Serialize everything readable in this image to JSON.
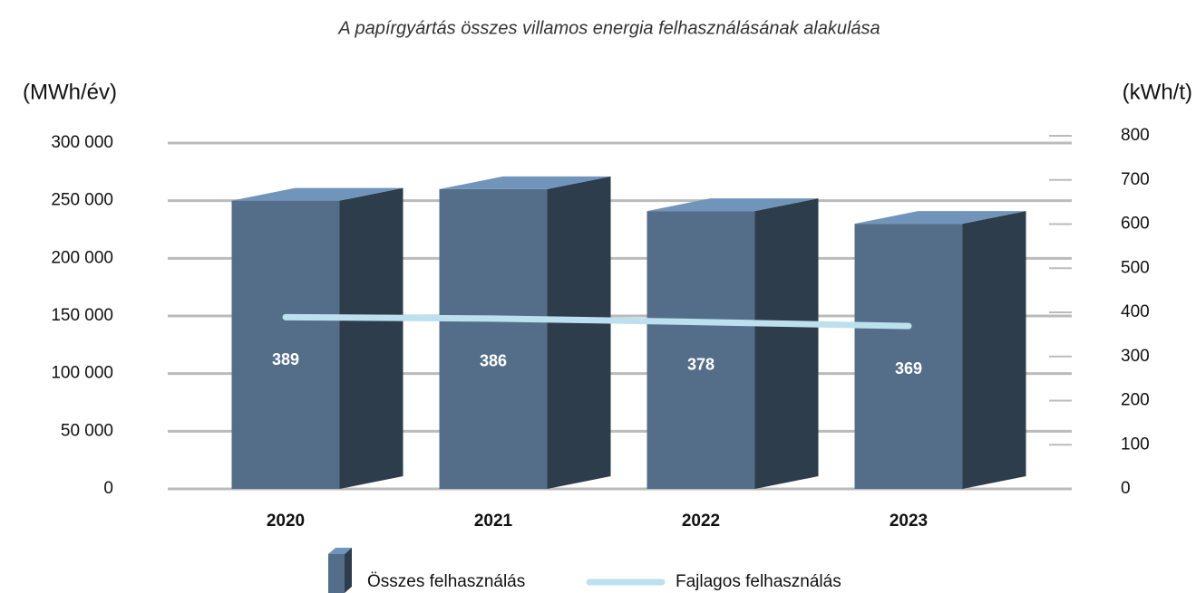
{
  "chart_data": {
    "type": "bar_line",
    "title": "A papírgyártás összes villamos energia felhasználásának alakulása",
    "y_label": "(MWh/év)",
    "y2_label": "(kWh/t)",
    "categories": [
      "2020",
      "2021",
      "2022",
      "2023"
    ],
    "series": [
      {
        "name": "Összes felhasználás",
        "type": "bar",
        "color": "#546e8a",
        "values": [
          250000,
          260000,
          241000,
          230000
        ]
      },
      {
        "name": "Fajlagos felhasználás",
        "type": "line",
        "axis": "y2",
        "color": "#bde0ef",
        "values": [
          389,
          386,
          378,
          369
        ]
      }
    ],
    "ylim": [
      0,
      300000
    ],
    "yticks": [
      0,
      {
        "value": 50000,
        "label": "50 000"
      },
      {
        "value": 100000,
        "label": "100 000"
      },
      {
        "value": 150000,
        "label": "150 000"
      },
      {
        "value": 200000,
        "label": "200 000"
      },
      {
        "value": 250000,
        "label": "250 000"
      },
      {
        "value": 300000,
        "label": "300 000"
      }
    ],
    "y2lim": [
      0,
      800
    ],
    "y2ticks": [
      0,
      100,
      200,
      300,
      400,
      500,
      600,
      700,
      800
    ],
    "grid": true,
    "legend": "bottom"
  }
}
